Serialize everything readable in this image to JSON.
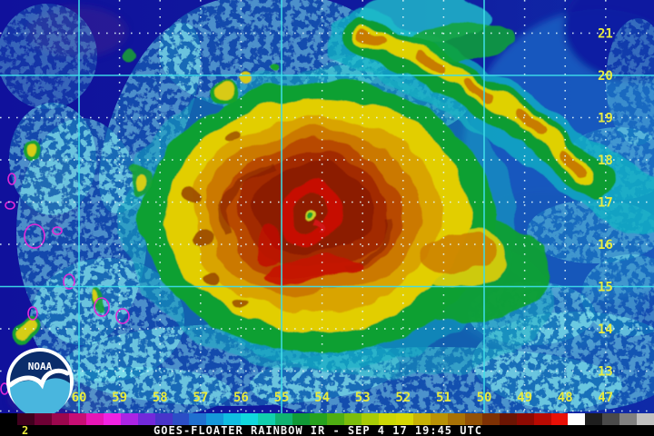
{
  "map": {
    "lat_labels": [
      "21",
      "20",
      "19",
      "18",
      "17",
      "16",
      "15",
      "14",
      "13"
    ],
    "lon_labels": [
      "60",
      "59",
      "58",
      "57",
      "56",
      "55",
      "54",
      "53",
      "52",
      "51",
      "50",
      "49",
      "48",
      "47"
    ],
    "label_color": "#e8ec3f",
    "grid_solid_color": "#3edde9",
    "grid_dot_color": "#e4fafa",
    "solid_lat_values": [
      "20",
      "15"
    ],
    "solid_lon_values": [
      "60",
      "55",
      "50"
    ],
    "coastline_color": "#e22ad8"
  },
  "logo": {
    "text": "NOAA",
    "navy": "#0b2d6b",
    "sea_blue": "#49b6de"
  },
  "colorbar": {
    "colors": [
      "#000000",
      "#40001e",
      "#6e0034",
      "#9c074e",
      "#c70e74",
      "#e716b6",
      "#f122e2",
      "#ab24e4",
      "#7229da",
      "#4834ca",
      "#2b4ec6",
      "#1f70d0",
      "#1497da",
      "#0fbde2",
      "#10d8de",
      "#10cfae",
      "#0fb271",
      "#109a36",
      "#27a21e",
      "#4fae12",
      "#7cbe0c",
      "#a8cc06",
      "#cdd704",
      "#d8d803",
      "#c8b205",
      "#b99206",
      "#a87206",
      "#935106",
      "#7e3104",
      "#6b1503",
      "#8d0a02",
      "#b90a02",
      "#e81007",
      "#ffffff",
      "#1e1e1e",
      "#4a4a4a",
      "#808080",
      "#c0c0c0"
    ]
  },
  "caption": {
    "channel": "2",
    "text": "GOES-FLOATER RAINBOW IR - SEP 4 17 19:45 UTC"
  }
}
